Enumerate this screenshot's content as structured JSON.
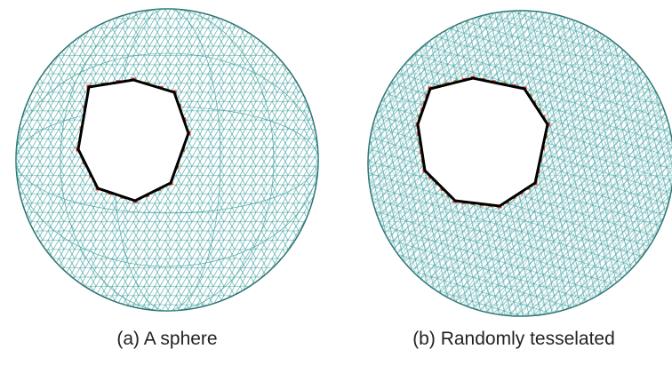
{
  "panels": [
    {
      "caption": "(a) A sphere"
    },
    {
      "caption": "(b) Randomly tesselated"
    }
  ]
}
